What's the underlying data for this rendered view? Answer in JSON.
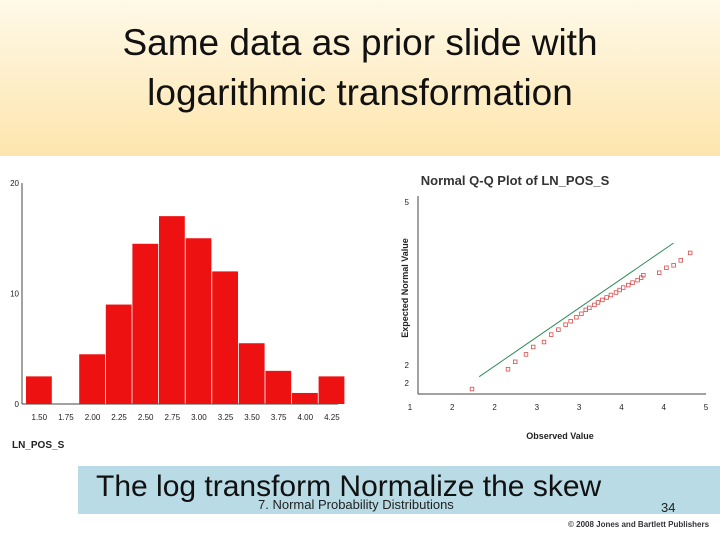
{
  "slide": {
    "title_line1": "Same data as prior slide with",
    "title_line2": "logarithmic transformation",
    "caption": "The log transform Normalize the skew",
    "footer": "7. Normal Probability Distributions",
    "page_number": "34",
    "copyright": "© 2008 Jones and Bartlett Publishers"
  },
  "chart_data": [
    {
      "type": "bar",
      "title": "",
      "xlabel": "LN_POS_S",
      "ylabel": "",
      "categories": [
        "1.50",
        "1.75",
        "2.00",
        "2.25",
        "2.50",
        "2.75",
        "3.00",
        "3.25",
        "3.50",
        "3.75",
        "4.00",
        "4.25"
      ],
      "values": [
        2.5,
        0,
        4.5,
        9,
        14.5,
        17,
        15,
        12,
        5.5,
        3,
        1,
        2.5
      ],
      "y_ticks": [
        "0",
        "10",
        "20"
      ],
      "ylim": [
        0,
        20
      ],
      "bar_color": "#ee1111",
      "grid": false
    },
    {
      "type": "scatter",
      "title": "Normal Q-Q Plot of LN_POS_S",
      "xlabel": "Observed Value",
      "ylabel": "Expected Normal Value",
      "xlim": [
        1,
        5
      ],
      "ylim": [
        1.5,
        5.5
      ],
      "x_ticks": [
        "1",
        "2",
        "2",
        "3",
        "3",
        "4",
        "4",
        "5"
      ],
      "y_ticks": [
        "2",
        "2",
        "5"
      ],
      "reference_line": [
        [
          1.85,
          1.85
        ],
        [
          4.55,
          4.55
        ]
      ],
      "points": [
        [
          1.75,
          1.6
        ],
        [
          2.25,
          2.0
        ],
        [
          2.35,
          2.15
        ],
        [
          2.5,
          2.3
        ],
        [
          2.6,
          2.45
        ],
        [
          2.75,
          2.55
        ],
        [
          2.85,
          2.7
        ],
        [
          2.95,
          2.8
        ],
        [
          3.05,
          2.9
        ],
        [
          3.12,
          2.97
        ],
        [
          3.2,
          3.05
        ],
        [
          3.27,
          3.12
        ],
        [
          3.33,
          3.2
        ],
        [
          3.38,
          3.24
        ],
        [
          3.45,
          3.3
        ],
        [
          3.5,
          3.35
        ],
        [
          3.56,
          3.4
        ],
        [
          3.62,
          3.45
        ],
        [
          3.68,
          3.5
        ],
        [
          3.75,
          3.55
        ],
        [
          3.8,
          3.6
        ],
        [
          3.85,
          3.65
        ],
        [
          3.92,
          3.7
        ],
        [
          3.98,
          3.75
        ],
        [
          4.05,
          3.8
        ],
        [
          4.1,
          3.85
        ],
        [
          4.13,
          3.9
        ],
        [
          4.35,
          3.95
        ],
        [
          4.45,
          4.05
        ],
        [
          4.55,
          4.1
        ],
        [
          4.65,
          4.2
        ],
        [
          4.78,
          4.35
        ]
      ],
      "marker_color": "#d84a4a",
      "line_color": "#2e8b57",
      "grid": false
    }
  ]
}
